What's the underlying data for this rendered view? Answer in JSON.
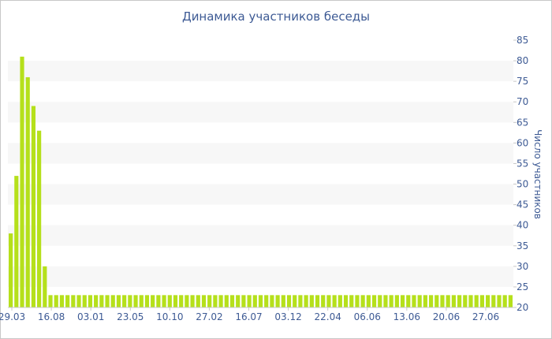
{
  "chart_data": {
    "type": "bar",
    "title": "Динамика участников беседы",
    "ylabel": "Число участников",
    "xlabel": "",
    "ylim": [
      20,
      85
    ],
    "y_ticks": [
      20,
      25,
      30,
      35,
      40,
      45,
      50,
      55,
      60,
      65,
      70,
      75,
      80,
      85
    ],
    "x_tick_labels": [
      "29.03",
      "16.08",
      "03.01",
      "23.05",
      "10.10",
      "27.02",
      "16.07",
      "03.12",
      "22.04",
      "06.06",
      "13.06",
      "20.06",
      "27.06"
    ],
    "grid": "horizontal-bands",
    "bar_color": "#b5e01b",
    "values": [
      38,
      52,
      81,
      76,
      69,
      63,
      30,
      23,
      23,
      23,
      23,
      23,
      23,
      23,
      23,
      23,
      23,
      23,
      23,
      23,
      23,
      23,
      23,
      23,
      23,
      23,
      23,
      23,
      23,
      23,
      23,
      23,
      23,
      23,
      23,
      23,
      23,
      23,
      23,
      23,
      23,
      23,
      23,
      23,
      23,
      23,
      23,
      23,
      23,
      23,
      23,
      23,
      23,
      23,
      23,
      23,
      23,
      23,
      23,
      23,
      23,
      23,
      23,
      23,
      23,
      23,
      23,
      23,
      23,
      23,
      23,
      23,
      23,
      23,
      23,
      23,
      23,
      23,
      23,
      23,
      23,
      23,
      23,
      23,
      23,
      23,
      23,
      23,
      23
    ]
  }
}
